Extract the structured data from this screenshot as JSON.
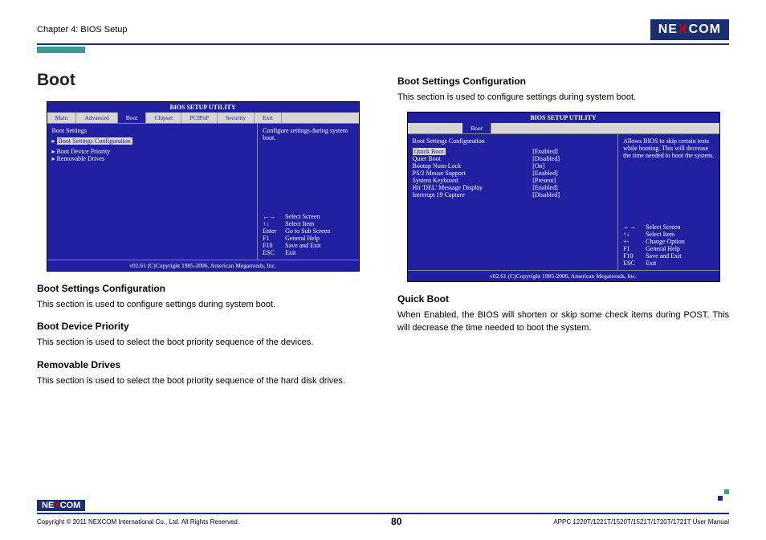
{
  "header": {
    "chapter": "Chapter 4: BIOS Setup",
    "logo_left": "NE",
    "logo_x": "X",
    "logo_right": "COM"
  },
  "left": {
    "title": "Boot",
    "sections": [
      {
        "heading": "Boot Settings Configuration",
        "text": "This section is used to configure settings during system boot."
      },
      {
        "heading": "Boot Device Priority",
        "text": "This section is used to select the boot priority sequence of the devices."
      },
      {
        "heading": "Removable Drives",
        "text": "This section is used to select the boot priority sequence of the hard disk drives."
      }
    ]
  },
  "right": {
    "sections": [
      {
        "heading": "Boot Settings Configuration",
        "text": "This section is used to configure settings during system boot."
      },
      {
        "heading": "Quick Boot",
        "text": "When Enabled, the BIOS will shorten or skip some check items during POST. This will decrease the time needed to boot the system."
      }
    ]
  },
  "bios1": {
    "title": "BIOS SETUP UTILITY",
    "tabs": [
      "Main",
      "Advanced",
      "Boot",
      "Chipset",
      "PCIPnP",
      "Security",
      "Exit"
    ],
    "active_tab": "Boot",
    "left_heading": "Boot Settings",
    "selected": "Boot Settings Configuration",
    "items": [
      "Boot Device Priority",
      "Removable Drives"
    ],
    "help_top": "Configure settings during system boot.",
    "nav": [
      {
        "k": "←→",
        "v": "Select Screen"
      },
      {
        "k": "↑↓",
        "v": "Select Item"
      },
      {
        "k": "Enter",
        "v": "Go to Sub Screen"
      },
      {
        "k": "F1",
        "v": "General Help"
      },
      {
        "k": "F10",
        "v": "Save and Exit"
      },
      {
        "k": "ESC",
        "v": "Exit"
      }
    ],
    "footer": "v02.61 (C)Copyright 1985-2006, American Megatrends, Inc."
  },
  "bios2": {
    "title": "BIOS SETUP UTILITY",
    "tabs": [
      "Boot"
    ],
    "active_tab": "Boot",
    "left_heading": "Boot Settings Configuration",
    "rows": [
      {
        "label": "Quick Boot",
        "val": "[Enabled]",
        "sel": true
      },
      {
        "label": "Quiet Boot",
        "val": "[Disabled]"
      },
      {
        "label": "Bootup Num-Lock",
        "val": "[On]"
      },
      {
        "label": "PS/2 Mouse Support",
        "val": "[Enabled]"
      },
      {
        "label": "System Keyboard",
        "val": "[Present]"
      },
      {
        "label": "Hit 'DEL' Message Display",
        "val": "[Enabled]"
      },
      {
        "label": "Interrupt 19 Capture",
        "val": "[Disabled]"
      }
    ],
    "help_top": "Allows BIOS to skip certain tests while booting. This will decrease the time needed to boot the system.",
    "nav": [
      {
        "k": "←→",
        "v": "Select Screen"
      },
      {
        "k": "↑↓",
        "v": "Select Item"
      },
      {
        "k": "+-",
        "v": "Change Option"
      },
      {
        "k": "F1",
        "v": "General Help"
      },
      {
        "k": "F10",
        "v": "Save and Exit"
      },
      {
        "k": "ESC",
        "v": "Exit"
      }
    ],
    "footer": "v02.61 (C)Copyright 1985-2006, American Megatrends, Inc."
  },
  "footer": {
    "copyright": "Copyright © 2011 NEXCOM International Co., Ltd. All Rights Reserved.",
    "page": "80",
    "manual": "APPC 1220T/1221T/1520T/1521T/1720T/1721T User Manual"
  },
  "colors": {
    "brand_blue": "#1a2f6f",
    "bios_blue": "#2020a0",
    "accent_teal": "#3a9b8f",
    "red": "#d00000"
  }
}
